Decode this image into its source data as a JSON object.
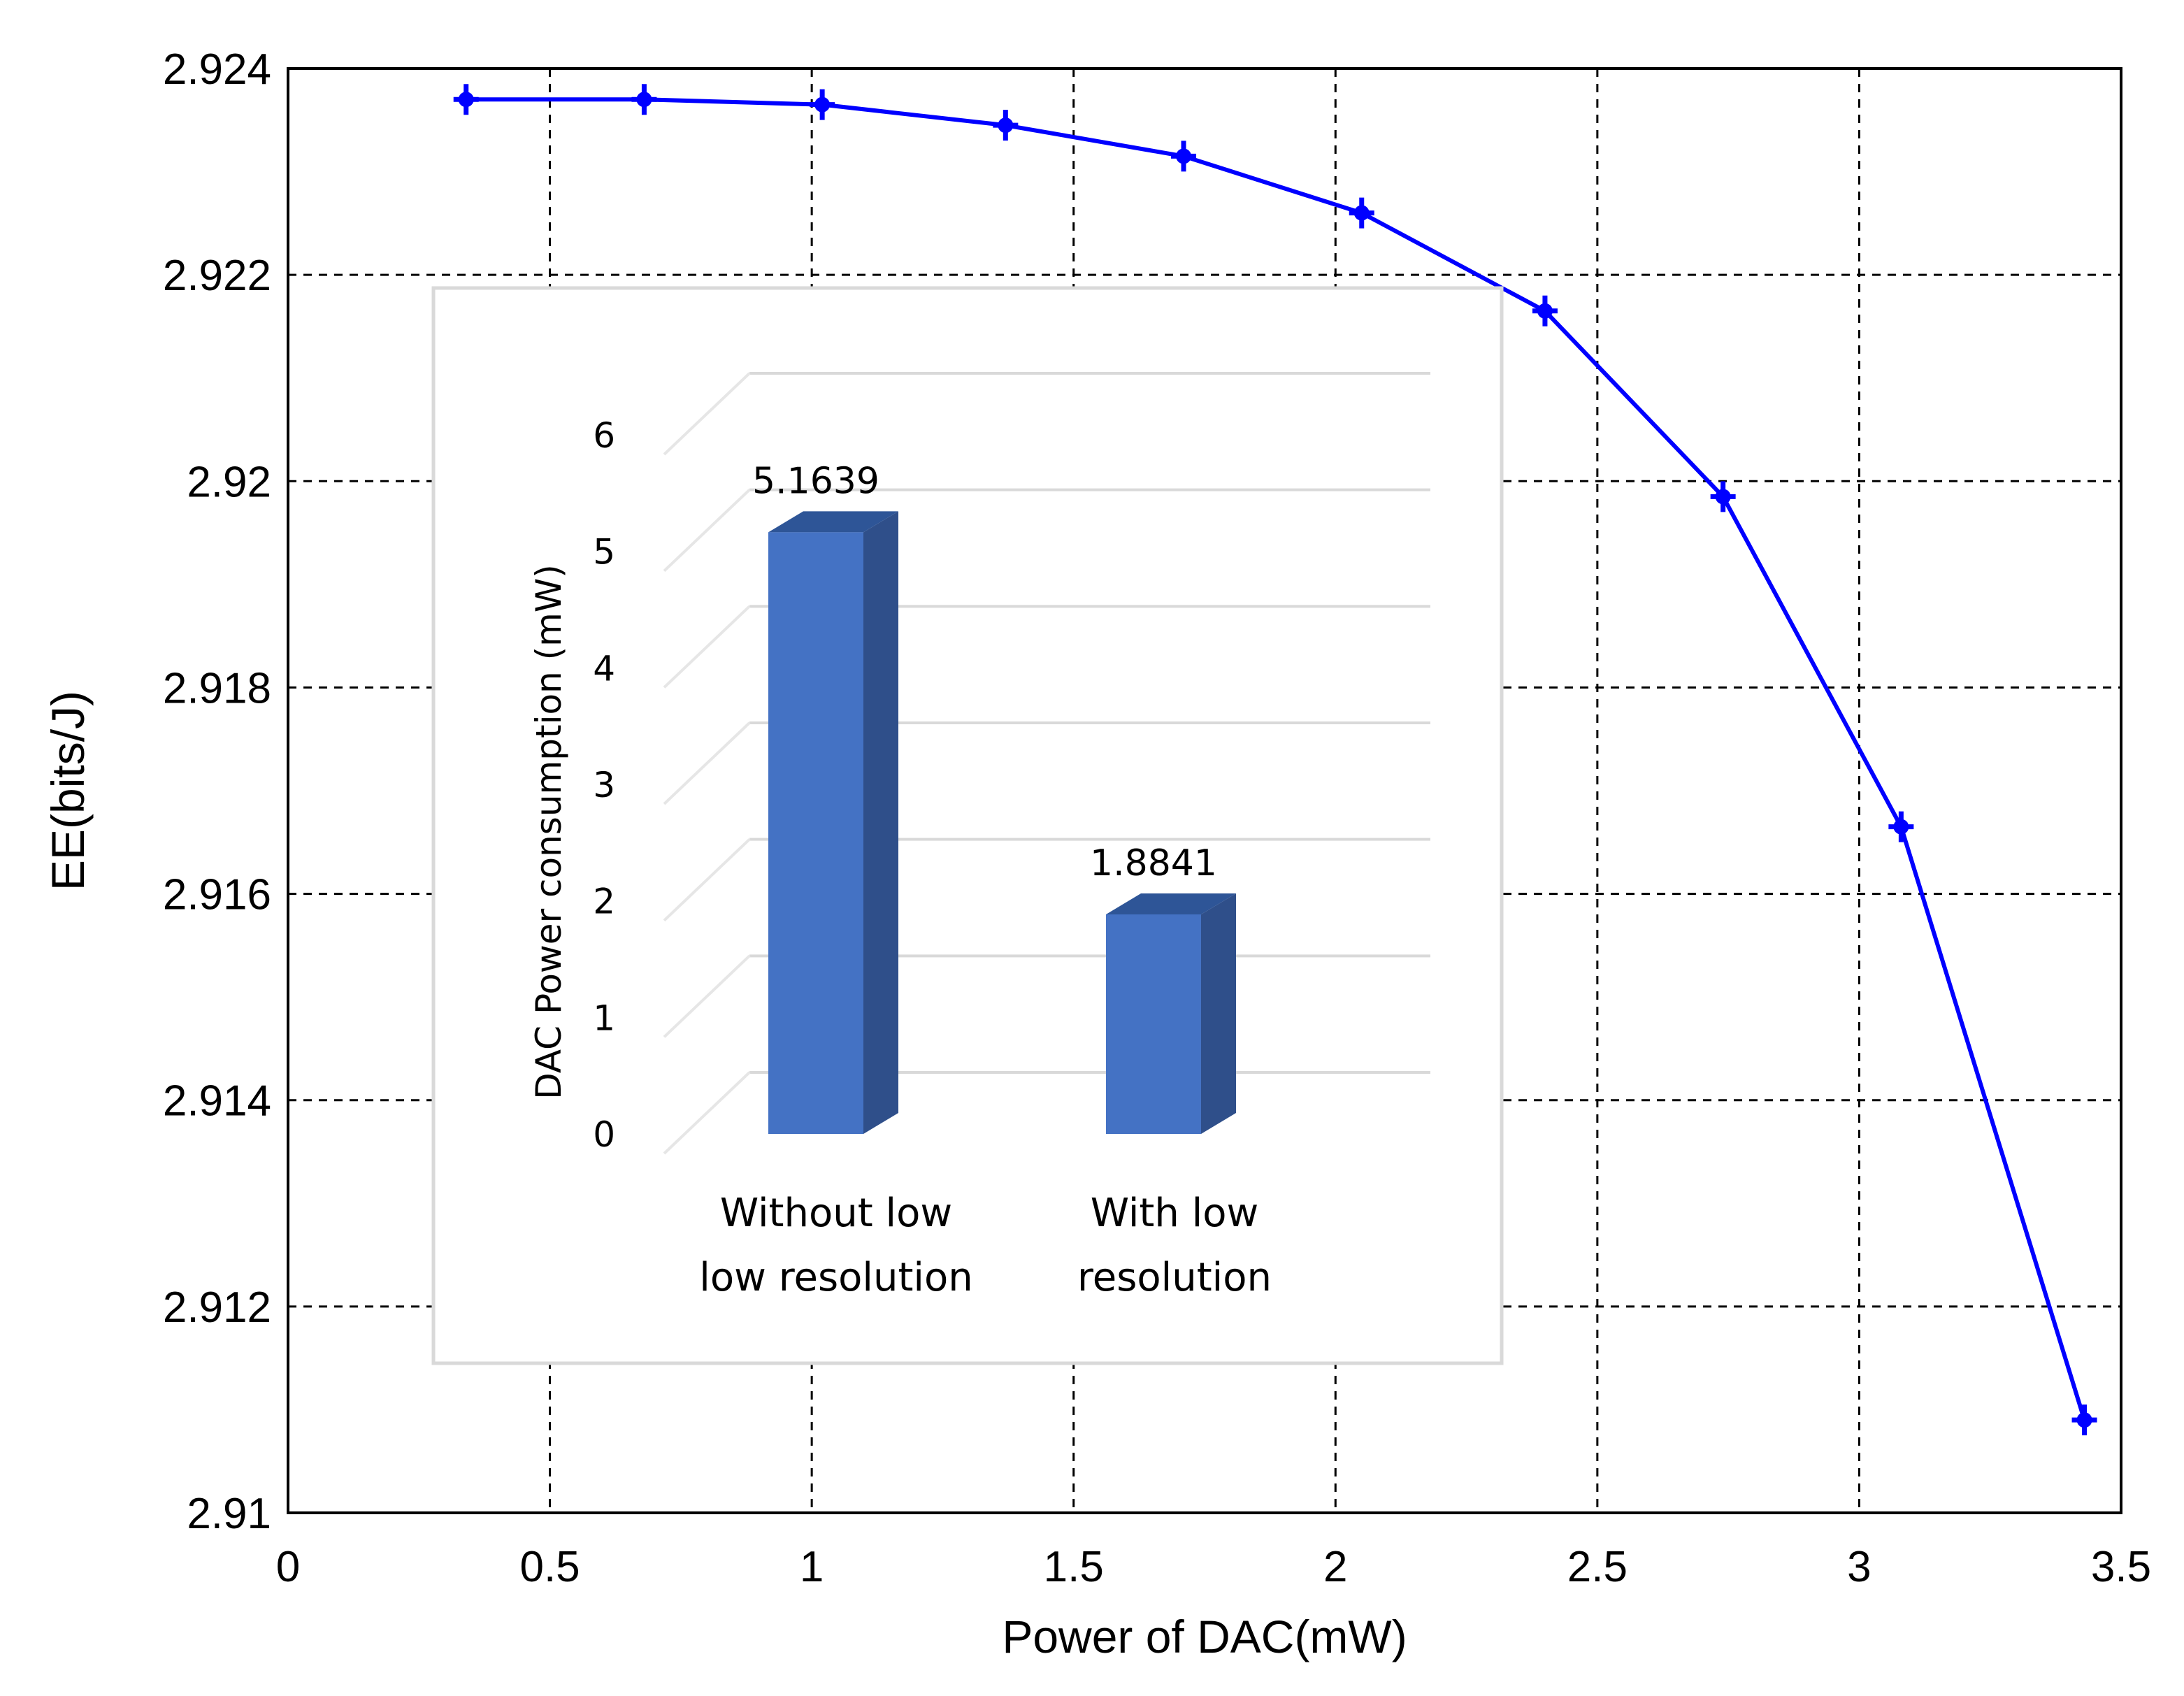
{
  "chart_data": [
    {
      "type": "line",
      "xlabel": "Power of DAC(mW)",
      "ylabel": "EE(bits/J)",
      "xlim": [
        0,
        3.5
      ],
      "ylim": [
        2.91,
        2.924
      ],
      "xticks": [
        0,
        0.5,
        1,
        1.5,
        2,
        2.5,
        3,
        3.5
      ],
      "xtick_labels": [
        "0",
        "0.5",
        "1",
        "1.5",
        "2",
        "2.5",
        "3",
        "3.5"
      ],
      "yticks": [
        2.91,
        2.912,
        2.914,
        2.916,
        2.918,
        2.92,
        2.922,
        2.924
      ],
      "ytick_labels": [
        "2.91",
        "2.912",
        "2.914",
        "2.916",
        "2.918",
        "2.92",
        "2.922",
        "2.924"
      ],
      "grid": true,
      "color": "#0000ff",
      "marker": "star",
      "series": [
        {
          "name": "EE",
          "x": [
            0.34,
            0.68,
            1.02,
            1.37,
            1.71,
            2.05,
            2.4,
            2.74,
            3.08,
            3.43
          ],
          "y": [
            2.9237,
            2.9237,
            2.92365,
            2.92345,
            2.92315,
            2.9226,
            2.92165,
            2.91985,
            2.91665,
            2.9109
          ]
        }
      ]
    },
    {
      "type": "bar",
      "title": "",
      "ylabel": "DAC Power  consumption (mW)",
      "ylim": [
        0,
        6
      ],
      "yticks": [
        0,
        1,
        2,
        3,
        4,
        5,
        6
      ],
      "ytick_labels": [
        "0",
        "1",
        "2",
        "3",
        "4",
        "5",
        "6"
      ],
      "categories": [
        [
          "Without low",
          "low resolution"
        ],
        [
          "With low",
          "resolution"
        ]
      ],
      "values": [
        5.1639,
        1.8841
      ],
      "value_labels": [
        "5.1639",
        "1.8841"
      ],
      "bar_color": "#4472c4",
      "bar_side_color": "#2f4f8a",
      "grid": true
    }
  ]
}
